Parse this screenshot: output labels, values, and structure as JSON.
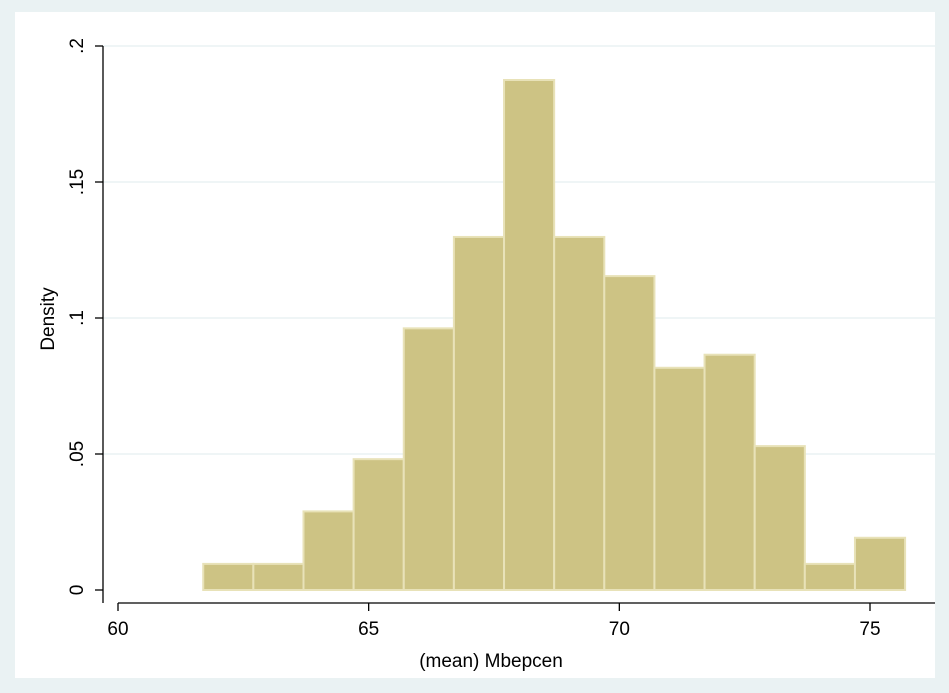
{
  "colors": {
    "background": "#eaf2f3",
    "plot_background": "#ffffff",
    "bar_fill": "#cdc384",
    "bar_stroke": "#e8e2b8",
    "grid": "#eaf2f3",
    "axis": "#000000"
  },
  "chart_data": {
    "type": "bar",
    "xlabel": "(mean) Mbepcen",
    "ylabel": "Density",
    "xlim": [
      60,
      76
    ],
    "ylim": [
      0,
      0.2
    ],
    "grid": true,
    "x_ticks": [
      {
        "value": 60,
        "label": "60"
      },
      {
        "value": 65,
        "label": "65"
      },
      {
        "value": 70,
        "label": "70"
      },
      {
        "value": 75,
        "label": "75"
      }
    ],
    "y_ticks": [
      {
        "value": 0,
        "label": "0"
      },
      {
        "value": 0.05,
        "label": ".05"
      },
      {
        "value": 0.1,
        "label": ".1"
      },
      {
        "value": 0.15,
        "label": ".15"
      },
      {
        "value": 0.2,
        "label": ".2"
      }
    ],
    "bins": [
      {
        "start": 61.7,
        "end": 62.7,
        "density": 0.0096
      },
      {
        "start": 62.7,
        "end": 63.7,
        "density": 0.0096
      },
      {
        "start": 63.7,
        "end": 64.7,
        "density": 0.0289
      },
      {
        "start": 64.7,
        "end": 65.7,
        "density": 0.0481
      },
      {
        "start": 65.7,
        "end": 66.7,
        "density": 0.0962
      },
      {
        "start": 66.7,
        "end": 67.7,
        "density": 0.1298
      },
      {
        "start": 67.7,
        "end": 68.7,
        "density": 0.1875
      },
      {
        "start": 68.7,
        "end": 69.7,
        "density": 0.1298
      },
      {
        "start": 69.7,
        "end": 70.7,
        "density": 0.1154
      },
      {
        "start": 70.7,
        "end": 71.7,
        "density": 0.0817
      },
      {
        "start": 71.7,
        "end": 72.7,
        "density": 0.0865
      },
      {
        "start": 72.7,
        "end": 73.7,
        "density": 0.0529
      },
      {
        "start": 73.7,
        "end": 74.7,
        "density": 0.0096
      },
      {
        "start": 74.7,
        "end": 75.7,
        "density": 0.0192
      }
    ]
  }
}
